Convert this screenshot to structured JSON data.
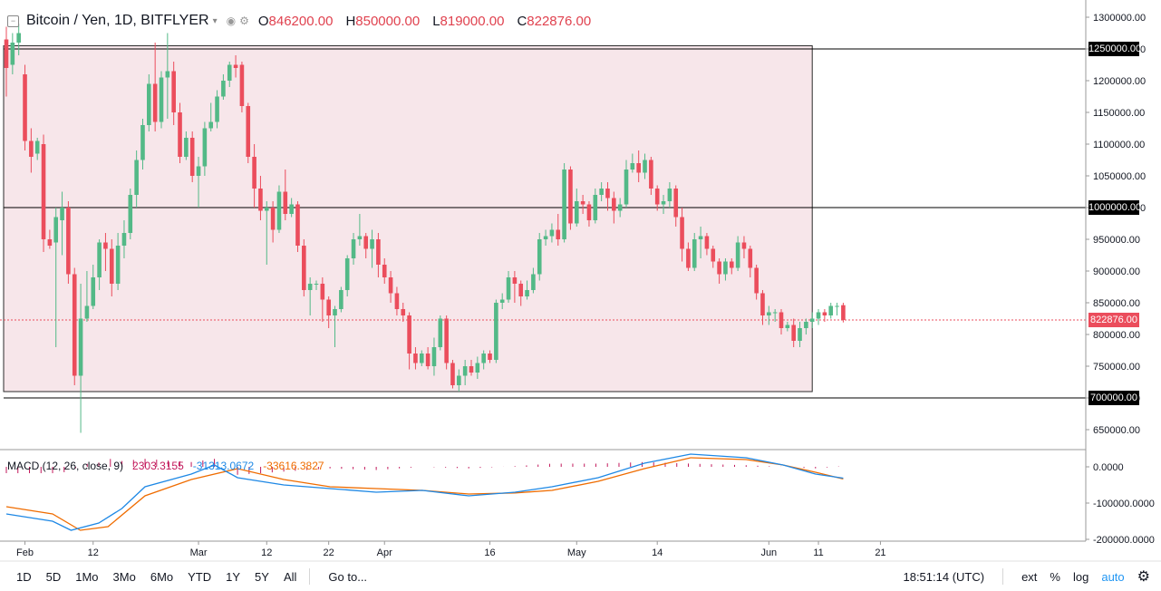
{
  "header": {
    "symbol": "Bitcoin / Yen, 1D, BITFLYER",
    "open_label": "O",
    "open": "846200.00",
    "high_label": "H",
    "high": "850000.00",
    "low_label": "L",
    "low": "819000.00",
    "close_label": "C",
    "close": "822876.00"
  },
  "macd": {
    "title": "MACD (12, 26, close, 9)",
    "histogram": "2303.3155",
    "macd": "-31313.0672",
    "signal": "-33616.3827"
  },
  "price_tags": {
    "level_1250": "1250000.00",
    "level_1000": "1000000.00",
    "level_700": "700000.00",
    "last": "822876.00"
  },
  "colors": {
    "up": "#53b987",
    "down": "#eb4d5c",
    "zone": "#f7e6ea",
    "macd": "#1e88e5",
    "signal": "#ef6c00",
    "hist": "#c2185b"
  },
  "bottom": {
    "timeframes": [
      "1D",
      "5D",
      "1Mo",
      "3Mo",
      "6Mo",
      "YTD",
      "1Y",
      "5Y",
      "All"
    ],
    "goto": "Go to...",
    "time": "18:51:14 (UTC)",
    "ext": "ext",
    "pct": "%",
    "log": "log",
    "auto": "auto"
  },
  "chart_data": {
    "type": "candlestick",
    "title": "Bitcoin / Yen, 1D, BITFLYER",
    "y_range": [
      620000,
      1320000
    ],
    "y_ticks": [
      650000,
      700000,
      750000,
      800000,
      850000,
      900000,
      950000,
      1000000,
      1050000,
      1100000,
      1150000,
      1200000,
      1250000,
      1300000
    ],
    "x_labels": [
      "Feb",
      "12",
      "Mar",
      "12",
      "22",
      "Apr",
      "16",
      "May",
      "14",
      "Jun",
      "11",
      "21"
    ],
    "x_label_index": [
      3,
      14,
      31,
      42,
      52,
      61,
      78,
      92,
      105,
      123,
      131,
      141
    ],
    "horizontal_levels": [
      1250000,
      1000000,
      700000
    ],
    "zone": {
      "from_index": 0,
      "to_index": 130,
      "top": 1255000,
      "bottom": 710000
    },
    "last_price": 822876,
    "candles": [
      [
        1265000,
        1220000,
        1285000,
        1175000
      ],
      [
        1225000,
        1260000,
        1275000,
        1210000
      ],
      [
        1260000,
        1275000,
        1290000,
        1240000
      ],
      [
        1210000,
        1105000,
        1225000,
        1090000
      ],
      [
        1105000,
        1080000,
        1125000,
        1055000
      ],
      [
        1085000,
        1105000,
        1110000,
        1075000
      ],
      [
        1100000,
        950000,
        1115000,
        930000
      ],
      [
        950000,
        940000,
        965000,
        935000
      ],
      [
        945000,
        985000,
        1000000,
        780000
      ],
      [
        980000,
        1000000,
        1025000,
        925000
      ],
      [
        1000000,
        895000,
        1010000,
        880000
      ],
      [
        895000,
        735000,
        905000,
        720000
      ],
      [
        735000,
        825000,
        880000,
        645000
      ],
      [
        825000,
        845000,
        900000,
        820000
      ],
      [
        845000,
        890000,
        910000,
        840000
      ],
      [
        890000,
        945000,
        950000,
        870000
      ],
      [
        945000,
        935000,
        960000,
        900000
      ],
      [
        935000,
        880000,
        950000,
        860000
      ],
      [
        880000,
        940000,
        960000,
        870000
      ],
      [
        940000,
        960000,
        980000,
        920000
      ],
      [
        960000,
        1020000,
        1030000,
        950000
      ],
      [
        1020000,
        1075000,
        1090000,
        1000000
      ],
      [
        1075000,
        1130000,
        1140000,
        1060000
      ],
      [
        1130000,
        1195000,
        1210000,
        1120000
      ],
      [
        1195000,
        1135000,
        1260000,
        1120000
      ],
      [
        1135000,
        1205000,
        1215000,
        1125000
      ],
      [
        1205000,
        1215000,
        1275000,
        1140000
      ],
      [
        1215000,
        1150000,
        1230000,
        1130000
      ],
      [
        1150000,
        1080000,
        1165000,
        1070000
      ],
      [
        1080000,
        1110000,
        1120000,
        1075000
      ],
      [
        1110000,
        1050000,
        1120000,
        1040000
      ],
      [
        1050000,
        1065000,
        1080000,
        1000000
      ],
      [
        1065000,
        1125000,
        1135000,
        1050000
      ],
      [
        1125000,
        1135000,
        1165000,
        1120000
      ],
      [
        1135000,
        1175000,
        1185000,
        1125000
      ],
      [
        1175000,
        1200000,
        1210000,
        1170000
      ],
      [
        1200000,
        1225000,
        1230000,
        1190000
      ],
      [
        1225000,
        1220000,
        1240000,
        1205000
      ],
      [
        1225000,
        1160000,
        1230000,
        1150000
      ],
      [
        1160000,
        1080000,
        1165000,
        1070000
      ],
      [
        1080000,
        1030000,
        1100000,
        1000000
      ],
      [
        1030000,
        995000,
        1050000,
        980000
      ],
      [
        995000,
        1000000,
        1010000,
        910000
      ],
      [
        1000000,
        965000,
        1010000,
        945000
      ],
      [
        965000,
        1025000,
        1035000,
        960000
      ],
      [
        1025000,
        990000,
        1060000,
        980000
      ],
      [
        990000,
        1005000,
        1015000,
        985000
      ],
      [
        1005000,
        940000,
        1010000,
        930000
      ],
      [
        940000,
        870000,
        950000,
        860000
      ],
      [
        870000,
        880000,
        890000,
        830000
      ],
      [
        880000,
        880000,
        885000,
        870000
      ],
      [
        880000,
        855000,
        890000,
        820000
      ],
      [
        855000,
        830000,
        860000,
        810000
      ],
      [
        830000,
        840000,
        845000,
        780000
      ],
      [
        840000,
        870000,
        875000,
        835000
      ],
      [
        870000,
        920000,
        925000,
        860000
      ],
      [
        920000,
        950000,
        960000,
        910000
      ],
      [
        950000,
        955000,
        990000,
        940000
      ],
      [
        955000,
        935000,
        960000,
        920000
      ],
      [
        935000,
        950000,
        965000,
        905000
      ],
      [
        950000,
        910000,
        960000,
        890000
      ],
      [
        910000,
        890000,
        920000,
        880000
      ],
      [
        890000,
        865000,
        900000,
        850000
      ],
      [
        865000,
        840000,
        875000,
        830000
      ],
      [
        840000,
        830000,
        850000,
        820000
      ],
      [
        830000,
        770000,
        835000,
        745000
      ],
      [
        770000,
        755000,
        780000,
        745000
      ],
      [
        755000,
        770000,
        775000,
        750000
      ],
      [
        770000,
        750000,
        780000,
        745000
      ],
      [
        750000,
        780000,
        795000,
        735000
      ],
      [
        780000,
        825000,
        830000,
        775000
      ],
      [
        825000,
        755000,
        830000,
        745000
      ],
      [
        755000,
        720000,
        760000,
        715000
      ],
      [
        720000,
        735000,
        745000,
        710000
      ],
      [
        735000,
        750000,
        760000,
        720000
      ],
      [
        750000,
        740000,
        760000,
        735000
      ],
      [
        740000,
        755000,
        765000,
        730000
      ],
      [
        755000,
        770000,
        775000,
        745000
      ],
      [
        770000,
        760000,
        775000,
        755000
      ],
      [
        760000,
        850000,
        855000,
        755000
      ],
      [
        850000,
        855000,
        865000,
        840000
      ],
      [
        855000,
        890000,
        900000,
        850000
      ],
      [
        890000,
        880000,
        900000,
        850000
      ],
      [
        880000,
        860000,
        885000,
        845000
      ],
      [
        860000,
        870000,
        885000,
        855000
      ],
      [
        870000,
        895000,
        905000,
        865000
      ],
      [
        895000,
        950000,
        960000,
        885000
      ],
      [
        950000,
        955000,
        965000,
        940000
      ],
      [
        955000,
        965000,
        975000,
        945000
      ],
      [
        965000,
        950000,
        990000,
        940000
      ],
      [
        950000,
        1060000,
        1070000,
        945000
      ],
      [
        1060000,
        975000,
        1065000,
        965000
      ],
      [
        975000,
        1010000,
        1030000,
        970000
      ],
      [
        1010000,
        1005000,
        1020000,
        990000
      ],
      [
        1005000,
        980000,
        1010000,
        970000
      ],
      [
        980000,
        1020000,
        1030000,
        975000
      ],
      [
        1020000,
        1030000,
        1040000,
        1010000
      ],
      [
        1030000,
        1015000,
        1040000,
        995000
      ],
      [
        1015000,
        995000,
        1025000,
        975000
      ],
      [
        995000,
        1005000,
        1015000,
        985000
      ],
      [
        1005000,
        1060000,
        1075000,
        1000000
      ],
      [
        1060000,
        1070000,
        1085000,
        1055000
      ],
      [
        1070000,
        1055000,
        1090000,
        1040000
      ],
      [
        1055000,
        1075000,
        1085000,
        1045000
      ],
      [
        1075000,
        1030000,
        1080000,
        1020000
      ],
      [
        1030000,
        1005000,
        1035000,
        995000
      ],
      [
        1005000,
        1010000,
        1020000,
        990000
      ],
      [
        1010000,
        1030000,
        1040000,
        1000000
      ],
      [
        1030000,
        985000,
        1035000,
        970000
      ],
      [
        985000,
        935000,
        1000000,
        915000
      ],
      [
        935000,
        905000,
        945000,
        900000
      ],
      [
        905000,
        950000,
        960000,
        900000
      ],
      [
        950000,
        955000,
        970000,
        920000
      ],
      [
        955000,
        935000,
        960000,
        925000
      ],
      [
        935000,
        915000,
        940000,
        905000
      ],
      [
        915000,
        895000,
        920000,
        880000
      ],
      [
        895000,
        915000,
        920000,
        885000
      ],
      [
        915000,
        905000,
        920000,
        895000
      ],
      [
        905000,
        945000,
        955000,
        900000
      ],
      [
        945000,
        935000,
        955000,
        920000
      ],
      [
        935000,
        905000,
        940000,
        890000
      ],
      [
        905000,
        865000,
        910000,
        855000
      ],
      [
        865000,
        830000,
        870000,
        815000
      ],
      [
        830000,
        835000,
        845000,
        815000
      ],
      [
        835000,
        835000,
        840000,
        820000
      ],
      [
        835000,
        810000,
        840000,
        800000
      ],
      [
        810000,
        815000,
        820000,
        805000
      ],
      [
        815000,
        790000,
        825000,
        780000
      ],
      [
        790000,
        810000,
        820000,
        780000
      ],
      [
        810000,
        820000,
        825000,
        800000
      ],
      [
        820000,
        825000,
        835000,
        810000
      ],
      [
        825000,
        835000,
        840000,
        815000
      ],
      [
        835000,
        830000,
        840000,
        820000
      ],
      [
        830000,
        845000,
        850000,
        825000
      ],
      [
        845000,
        845000,
        850000,
        830000
      ],
      [
        846200,
        822876,
        850000,
        819000
      ]
    ],
    "macd_panel": {
      "y_range": [
        -205000,
        45000
      ],
      "y_ticks": [
        0,
        -100000,
        -200000
      ],
      "macd_line": [
        [
          0,
          -130000
        ],
        [
          10,
          -150000
        ],
        [
          14,
          -175000
        ],
        [
          20,
          -155000
        ],
        [
          25,
          -115000
        ],
        [
          30,
          -55000
        ],
        [
          40,
          -20000
        ],
        [
          45,
          5000
        ],
        [
          50,
          -30000
        ],
        [
          60,
          -50000
        ],
        [
          70,
          -60000
        ],
        [
          80,
          -70000
        ],
        [
          90,
          -65000
        ],
        [
          100,
          -80000
        ],
        [
          110,
          -70000
        ],
        [
          118,
          -55000
        ],
        [
          128,
          -30000
        ],
        [
          138,
          10000
        ],
        [
          148,
          35000
        ],
        [
          160,
          25000
        ],
        [
          168,
          5000
        ],
        [
          175,
          -20000
        ],
        [
          181,
          -31313
        ]
      ],
      "signal_line": [
        [
          0,
          -110000
        ],
        [
          10,
          -130000
        ],
        [
          16,
          -175000
        ],
        [
          22,
          -165000
        ],
        [
          30,
          -80000
        ],
        [
          40,
          -35000
        ],
        [
          50,
          -5000
        ],
        [
          60,
          -35000
        ],
        [
          70,
          -55000
        ],
        [
          80,
          -60000
        ],
        [
          90,
          -65000
        ],
        [
          100,
          -75000
        ],
        [
          110,
          -72000
        ],
        [
          118,
          -65000
        ],
        [
          128,
          -40000
        ],
        [
          138,
          -5000
        ],
        [
          148,
          25000
        ],
        [
          160,
          20000
        ],
        [
          168,
          5000
        ],
        [
          175,
          -15000
        ],
        [
          181,
          -33616
        ]
      ]
    }
  }
}
